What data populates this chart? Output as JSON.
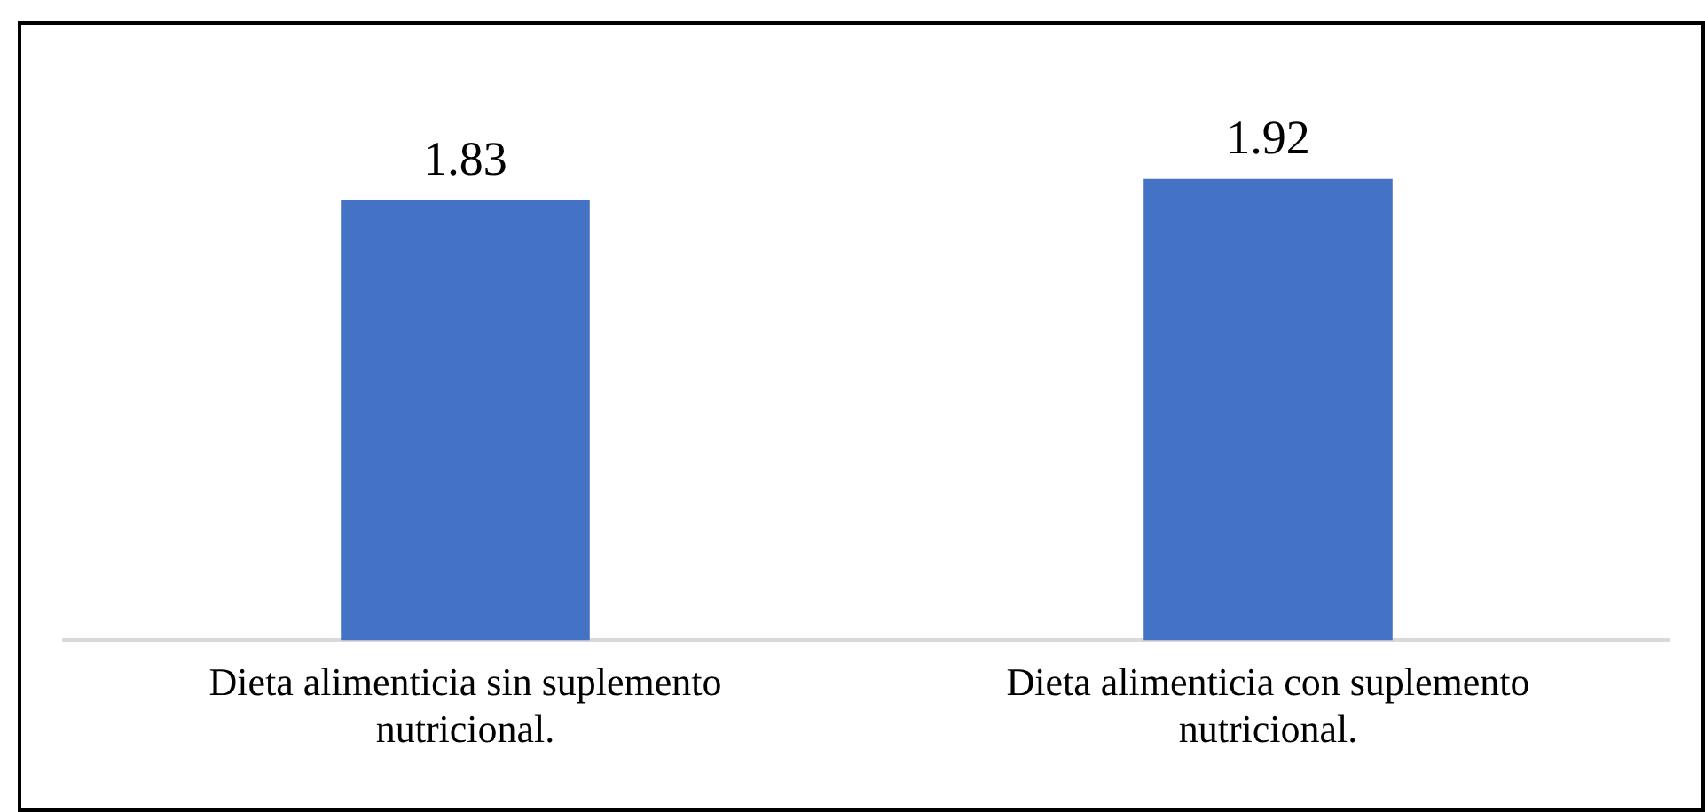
{
  "chart_data": {
    "type": "bar",
    "categories": [
      "Dieta alimenticia sin suplemento nutricional.",
      "Dieta alimenticia con suplemento nutricional."
    ],
    "values": [
      1.83,
      1.92
    ],
    "color": "#4472c4",
    "data_labels": true,
    "grid": false,
    "legend": false,
    "tick_labels": "x"
  }
}
